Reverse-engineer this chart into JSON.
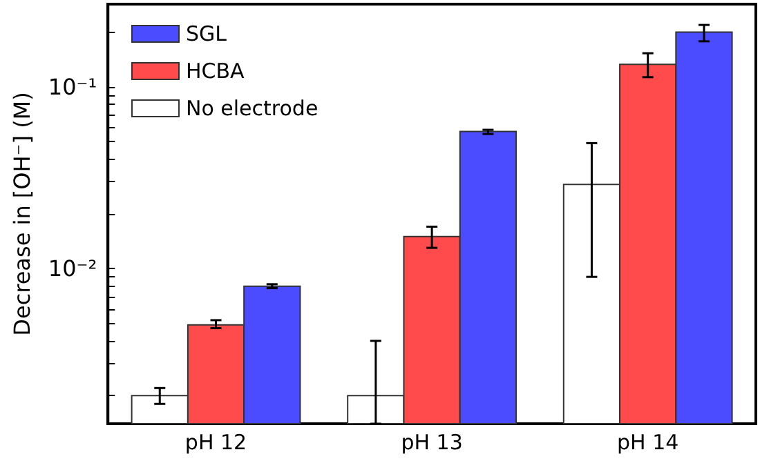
{
  "chart_data": {
    "type": "bar",
    "ylabel": "Decrease in [OH⁻] (M)",
    "categories": [
      "pH 12",
      "pH 13",
      "pH 14"
    ],
    "series": [
      {
        "name": "No electrode",
        "color": "#ffffff",
        "values": [
          0.002,
          0.002,
          0.029
        ],
        "errors": [
          [
            0.0018,
            0.0022
          ],
          [
            0.0014,
            0.004
          ],
          [
            0.009,
            0.049
          ]
        ]
      },
      {
        "name": "HCBA",
        "color": "#ff4b4b",
        "values": [
          0.0049,
          0.015,
          0.133
        ],
        "errors": [
          [
            0.0047,
            0.0052
          ],
          [
            0.013,
            0.017
          ],
          [
            0.113,
            0.153
          ]
        ]
      },
      {
        "name": "SGL",
        "color": "#4b4bff",
        "values": [
          0.008,
          0.0568,
          0.2
        ],
        "errors": [
          [
            0.0078,
            0.0082
          ],
          [
            0.055,
            0.058
          ],
          [
            0.178,
            0.219
          ]
        ]
      }
    ],
    "log": true,
    "ylim": [
      0.0014,
      0.285
    ],
    "yticks": [
      {
        "value": 0.002,
        "label": null
      },
      {
        "value": 0.003,
        "label": null
      },
      {
        "value": 0.004,
        "label": null
      },
      {
        "value": 0.005,
        "label": null
      },
      {
        "value": 0.006,
        "label": null
      },
      {
        "value": 0.007,
        "label": null
      },
      {
        "value": 0.008,
        "label": null
      },
      {
        "value": 0.009,
        "label": null
      },
      {
        "value": 0.01,
        "label": "10⁻²"
      },
      {
        "value": 0.02,
        "label": null
      },
      {
        "value": 0.03,
        "label": null
      },
      {
        "value": 0.04,
        "label": null
      },
      {
        "value": 0.05,
        "label": null
      },
      {
        "value": 0.06,
        "label": null
      },
      {
        "value": 0.07,
        "label": null
      },
      {
        "value": 0.08,
        "label": null
      },
      {
        "value": 0.09,
        "label": null
      },
      {
        "value": 0.1,
        "label": "10⁻¹"
      },
      {
        "value": 0.2,
        "label": null
      }
    ],
    "legend": "top left",
    "grid": false
  }
}
